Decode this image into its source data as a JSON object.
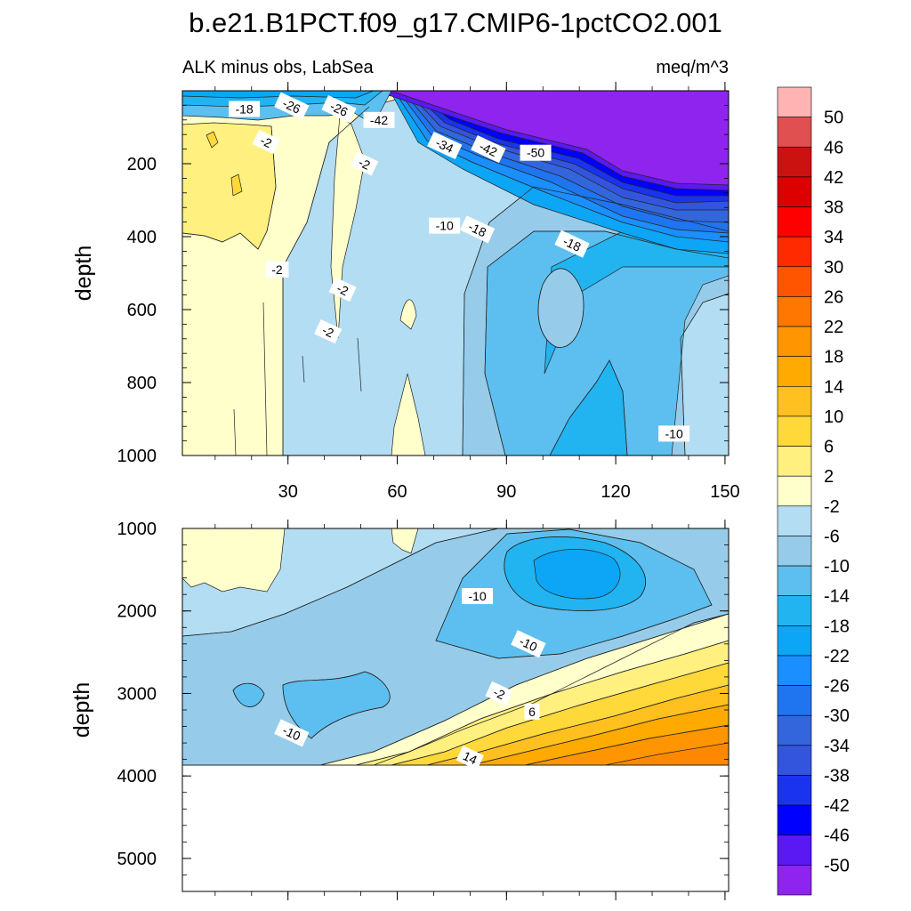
{
  "title": "b.e21.B1PCT.f09_g17.CMIP6-1pctCO2.001",
  "subtitle_left": "ALK minus obs, LabSea",
  "subtitle_right": "meq/m^3",
  "chart_data": [
    {
      "type": "heatmap",
      "panel": "upper",
      "ylabel": "depth",
      "xlim": [
        1,
        151
      ],
      "ylim": [
        0,
        1000
      ],
      "y_reversed": true,
      "x_ticks": [
        "30",
        "60",
        "90",
        "120",
        "150"
      ],
      "x_tick_values": [
        30,
        60,
        90,
        120,
        150
      ],
      "y_ticks": [
        "200",
        "400",
        "600",
        "800",
        "1000"
      ],
      "y_tick_values": [
        200,
        400,
        600,
        800,
        1000
      ],
      "contour_labels": [
        {
          "text": "-18",
          "x": 18,
          "y": 50
        },
        {
          "text": "-26",
          "x": 31,
          "y": 42
        },
        {
          "text": "-26",
          "x": 44,
          "y": 50
        },
        {
          "text": "-42",
          "x": 55,
          "y": 80
        },
        {
          "text": "-34",
          "x": 73,
          "y": 150
        },
        {
          "text": "-42",
          "x": 85,
          "y": 160
        },
        {
          "text": "-50",
          "x": 98,
          "y": 170
        },
        {
          "text": "-2",
          "x": 24,
          "y": 140
        },
        {
          "text": "-2",
          "x": 51,
          "y": 200
        },
        {
          "text": "-10",
          "x": 73,
          "y": 370
        },
        {
          "text": "-18",
          "x": 82,
          "y": 380
        },
        {
          "text": "-18",
          "x": 108,
          "y": 420
        },
        {
          "text": "-2",
          "x": 27,
          "y": 490
        },
        {
          "text": "-2",
          "x": 45,
          "y": 545
        },
        {
          "text": "-2",
          "x": 41,
          "y": 660
        },
        {
          "text": "-10",
          "x": 136,
          "y": 940
        }
      ]
    },
    {
      "type": "heatmap",
      "panel": "lower",
      "ylabel": "depth",
      "xlim": [
        1,
        151
      ],
      "ylim": [
        1000,
        5400
      ],
      "y_reversed": true,
      "y_ticks": [
        "1000",
        "2000",
        "3000",
        "4000",
        "5000"
      ],
      "y_tick_values": [
        1000,
        2000,
        3000,
        4000,
        5000
      ],
      "data_bottom_depth": 3850,
      "contour_labels": [
        {
          "text": "-10",
          "x": 82,
          "y": 1820
        },
        {
          "text": "-10",
          "x": 96,
          "y": 2400
        },
        {
          "text": "-2",
          "x": 88,
          "y": 3000
        },
        {
          "text": "6",
          "x": 97,
          "y": 3220
        },
        {
          "text": "-10",
          "x": 31,
          "y": 3480
        },
        {
          "text": "14",
          "x": 80,
          "y": 3780
        }
      ]
    }
  ],
  "colorbar": {
    "levels": [
      "50",
      "46",
      "42",
      "38",
      "34",
      "30",
      "26",
      "22",
      "18",
      "14",
      "10",
      "6",
      "2",
      "-2",
      "-6",
      "-10",
      "-14",
      "-18",
      "-22",
      "-26",
      "-30",
      "-34",
      "-38",
      "-42",
      "-46",
      "-50"
    ],
    "colors_top_to_bottom": [
      "#ffb3b3",
      "#e05050",
      "#cc1111",
      "#dd0000",
      "#ff0000",
      "#ff2a00",
      "#ff5500",
      "#ff7700",
      "#ff9500",
      "#ffaa00",
      "#ffc020",
      "#ffd83a",
      "#fff080",
      "#ffffcc",
      "#b3ddf2",
      "#96ccea",
      "#5cbfef",
      "#22b4f0",
      "#0da5f5",
      "#1a8fff",
      "#1f75ef",
      "#3366dd",
      "#3355dd",
      "#1a33ee",
      "#0000ff",
      "#5a18f2",
      "#8e24ee"
    ]
  }
}
